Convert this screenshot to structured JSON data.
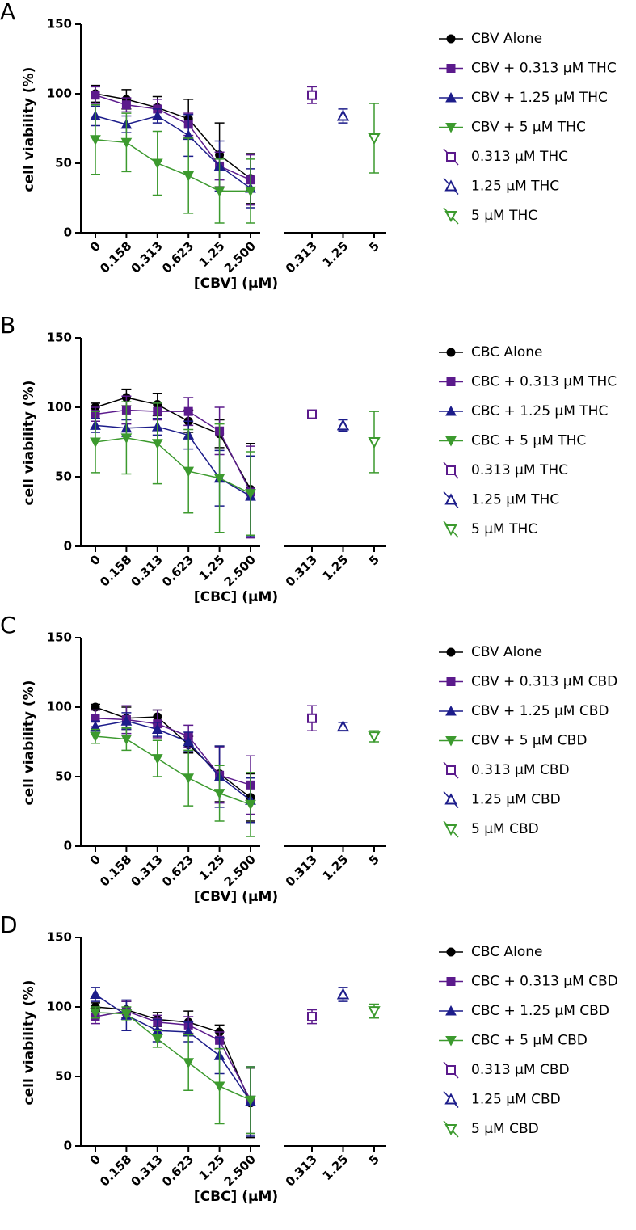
{
  "chart_data": [
    {
      "type": "line",
      "panel": "A",
      "ylabel": "cell viability (%)",
      "xlabel": "[CBV] (μM)",
      "categories": [
        "0",
        "0.158",
        "0.313",
        "0.623",
        "1.25",
        "2.500"
      ],
      "single_categories": [
        "0.313",
        "1.25",
        "5"
      ],
      "ylim": [
        0,
        150
      ],
      "yticks": [
        0,
        50,
        100,
        150
      ],
      "series": [
        {
          "name": "CBV Alone",
          "color": "#000000",
          "marker": "circle",
          "values": [
            100,
            96,
            90,
            82,
            56,
            39
          ],
          "errors": [
            6,
            7,
            8,
            14,
            23,
            18
          ]
        },
        {
          "name": "CBV + 0.313 μM THC",
          "color": "#5b1a8c",
          "marker": "square",
          "values": [
            99,
            92,
            89,
            78,
            48,
            38
          ],
          "errors": [
            6,
            5,
            7,
            8,
            10,
            18
          ]
        },
        {
          "name": "CBV + 1.25 μM THC",
          "color": "#1c1c8a",
          "marker": "triangle",
          "values": [
            84,
            78,
            84,
            70,
            48,
            32
          ],
          "errors": [
            7,
            6,
            5,
            15,
            18,
            14
          ]
        },
        {
          "name": "CBV + 5 μM THC",
          "color": "#3c9a2e",
          "marker": "triangle-down",
          "values": [
            67,
            65,
            50,
            41,
            30,
            30
          ],
          "errors": [
            25,
            21,
            23,
            27,
            23,
            23
          ]
        }
      ],
      "single_series": [
        {
          "name": "0.313 μM THC",
          "color": "#5b1a8c",
          "marker": "square",
          "values": [
            99,
            null,
            null
          ],
          "errors": [
            6,
            null,
            null
          ]
        },
        {
          "name": "1.25 μM THC",
          "color": "#1c1c8a",
          "marker": "triangle",
          "values": [
            null,
            84,
            null
          ],
          "errors": [
            null,
            5,
            null
          ]
        },
        {
          "name": "5 μM THC",
          "color": "#3c9a2e",
          "marker": "triangle-down",
          "values": [
            null,
            null,
            68
          ],
          "errors": [
            null,
            null,
            25
          ]
        }
      ]
    },
    {
      "type": "line",
      "panel": "B",
      "ylabel": "cell viability (%)",
      "xlabel": "[CBC] (μM)",
      "categories": [
        "0",
        "0.158",
        "0.313",
        "0.623",
        "1.25",
        "2.500"
      ],
      "single_categories": [
        "0.313",
        "1.25",
        "5"
      ],
      "ylim": [
        0,
        150
      ],
      "yticks": [
        0,
        50,
        100,
        150
      ],
      "series": [
        {
          "name": "CBC Alone",
          "color": "#000000",
          "marker": "circle",
          "values": [
            100,
            107,
            102,
            90,
            81,
            41
          ],
          "errors": [
            3,
            6,
            8,
            8,
            10,
            33
          ]
        },
        {
          "name": "CBC + 0.313 μM THC",
          "color": "#5b1a8c",
          "marker": "square",
          "values": [
            95,
            98,
            97,
            97,
            83,
            39
          ],
          "errors": [
            5,
            10,
            6,
            10,
            17,
            33
          ]
        },
        {
          "name": "CBC + 1.25 μM THC",
          "color": "#1c1c8a",
          "marker": "triangle",
          "values": [
            87,
            85,
            86,
            80,
            49,
            36
          ],
          "errors": [
            5,
            6,
            6,
            10,
            20,
            29
          ]
        },
        {
          "name": "CBC + 5 μM THC",
          "color": "#3c9a2e",
          "marker": "triangle-down",
          "values": [
            75,
            78,
            74,
            54,
            49,
            38
          ],
          "errors": [
            22,
            26,
            29,
            30,
            39,
            30
          ]
        }
      ],
      "single_series": [
        {
          "name": "0.313 μM THC",
          "color": "#5b1a8c",
          "marker": "square",
          "values": [
            95,
            null,
            null
          ],
          "errors": [
            3,
            null,
            null
          ]
        },
        {
          "name": "1.25 μM THC",
          "color": "#1c1c8a",
          "marker": "triangle",
          "values": [
            null,
            87,
            null
          ],
          "errors": [
            null,
            4,
            null
          ]
        },
        {
          "name": "5 μM THC",
          "color": "#3c9a2e",
          "marker": "triangle-down",
          "values": [
            null,
            null,
            75
          ],
          "errors": [
            null,
            null,
            22
          ]
        }
      ]
    },
    {
      "type": "line",
      "panel": "C",
      "ylabel": "cell viability (%)",
      "xlabel": "[CBV] (μM)",
      "categories": [
        "0",
        "0.158",
        "0.313",
        "0.623",
        "1.25",
        "2.500"
      ],
      "single_categories": [
        "0.313",
        "1.25",
        "5"
      ],
      "ylim": [
        0,
        150
      ],
      "yticks": [
        0,
        50,
        100,
        150
      ],
      "series": [
        {
          "name": "CBV Alone",
          "color": "#000000",
          "marker": "circle",
          "values": [
            100,
            92,
            93,
            73,
            52,
            35
          ],
          "errors": [
            2,
            8,
            5,
            6,
            20,
            17
          ]
        },
        {
          "name": "CBV + 0.313 μM CBD",
          "color": "#5b1a8c",
          "marker": "square",
          "values": [
            92,
            91,
            88,
            79,
            51,
            44
          ],
          "errors": [
            6,
            10,
            10,
            8,
            20,
            21
          ]
        },
        {
          "name": "CBV + 1.25 μM CBD",
          "color": "#1c1c8a",
          "marker": "triangle",
          "values": [
            86,
            90,
            84,
            75,
            50,
            33
          ],
          "errors": [
            4,
            6,
            5,
            7,
            22,
            16
          ]
        },
        {
          "name": "CBV + 5 μM CBD",
          "color": "#3c9a2e",
          "marker": "triangle-down",
          "values": [
            79,
            77,
            63,
            49,
            38,
            30
          ],
          "errors": [
            5,
            8,
            13,
            20,
            20,
            23
          ]
        }
      ],
      "single_series": [
        {
          "name": "0.313 μM CBD",
          "color": "#5b1a8c",
          "marker": "square",
          "values": [
            92,
            null,
            null
          ],
          "errors": [
            9,
            null,
            null
          ]
        },
        {
          "name": "1.25 μM CBD",
          "color": "#1c1c8a",
          "marker": "triangle",
          "values": [
            null,
            86,
            null
          ],
          "errors": [
            null,
            3,
            null
          ]
        },
        {
          "name": "5 μM CBD",
          "color": "#3c9a2e",
          "marker": "triangle-down",
          "values": [
            null,
            null,
            79
          ],
          "errors": [
            null,
            null,
            4
          ]
        }
      ]
    },
    {
      "type": "line",
      "panel": "D",
      "ylabel": "cell viability (%)",
      "xlabel": "[CBC] (μM)",
      "categories": [
        "0",
        "0.158",
        "0.313",
        "0.623",
        "1.25",
        "2.500"
      ],
      "single_categories": [
        "0.313",
        "1.25",
        "5"
      ],
      "ylim": [
        0,
        150
      ],
      "yticks": [
        0,
        50,
        100,
        150
      ],
      "series": [
        {
          "name": "CBC Alone",
          "color": "#000000",
          "marker": "circle",
          "values": [
            100,
            98,
            91,
            89,
            82,
            31
          ],
          "errors": [
            3,
            6,
            5,
            8,
            5,
            25
          ]
        },
        {
          "name": "CBC + 0.313 μM CBD",
          "color": "#5b1a8c",
          "marker": "square",
          "values": [
            93,
            97,
            89,
            87,
            76,
            33
          ],
          "errors": [
            5,
            7,
            5,
            6,
            6,
            24
          ]
        },
        {
          "name": "CBC + 1.25 μM CBD",
          "color": "#1c1c8a",
          "marker": "triangle",
          "values": [
            109,
            94,
            83,
            82,
            65,
            32
          ],
          "errors": [
            5,
            11,
            8,
            7,
            13,
            25
          ]
        },
        {
          "name": "CBC + 5 μM CBD",
          "color": "#3c9a2e",
          "marker": "triangle-down",
          "values": [
            96,
            95,
            77,
            60,
            43,
            33
          ],
          "errors": [
            4,
            5,
            6,
            20,
            27,
            24
          ]
        }
      ],
      "single_series": [
        {
          "name": "0.313 μM CBD",
          "color": "#5b1a8c",
          "marker": "square",
          "values": [
            93,
            null,
            null
          ],
          "errors": [
            5,
            null,
            null
          ]
        },
        {
          "name": "1.25 μM CBD",
          "color": "#1c1c8a",
          "marker": "triangle",
          "values": [
            null,
            109,
            null
          ],
          "errors": [
            null,
            5,
            null
          ]
        },
        {
          "name": "5 μM CBD",
          "color": "#3c9a2e",
          "marker": "triangle-down",
          "values": [
            null,
            null,
            97
          ],
          "errors": [
            null,
            null,
            5
          ]
        }
      ]
    }
  ]
}
